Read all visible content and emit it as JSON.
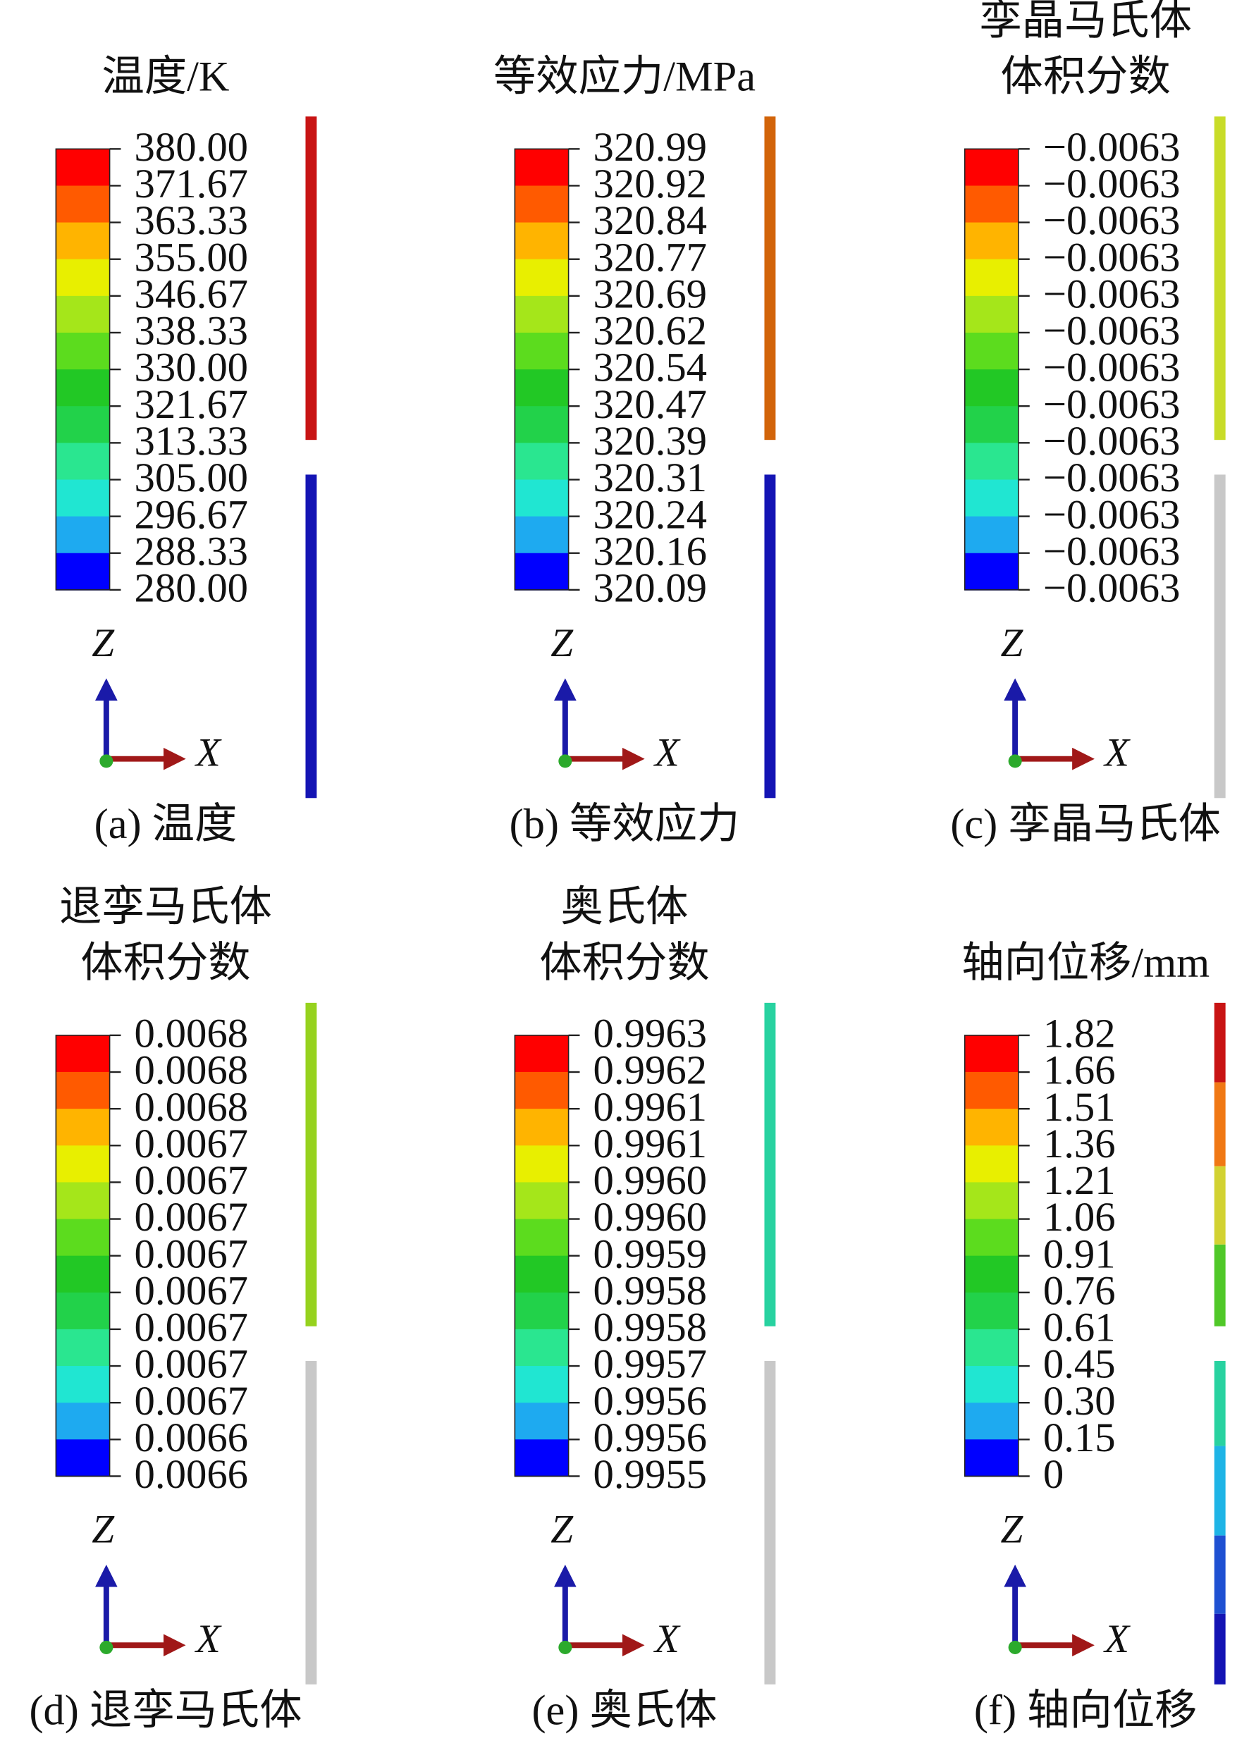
{
  "panels": [
    {
      "title": [
        "温度/K"
      ],
      "labels": [
        "380.00",
        "371.67",
        "363.33",
        "355.00",
        "346.67",
        "338.33",
        "330.00",
        "321.67",
        "313.33",
        "305.00",
        "296.67",
        "288.33",
        "280.00"
      ],
      "axis_z": "Z",
      "axis_x": "X",
      "caption": "(a) 温度"
    },
    {
      "title": [
        "等效应力/MPa"
      ],
      "labels": [
        "320.99",
        "320.92",
        "320.84",
        "320.77",
        "320.69",
        "320.62",
        "320.54",
        "320.47",
        "320.39",
        "320.31",
        "320.24",
        "320.16",
        "320.09"
      ],
      "axis_z": "Z",
      "axis_x": "X",
      "caption": "(b) 等效应力"
    },
    {
      "title": [
        "孪晶马氏体",
        "体积分数"
      ],
      "labels": [
        "−0.0063",
        "−0.0063",
        "−0.0063",
        "−0.0063",
        "−0.0063",
        "−0.0063",
        "−0.0063",
        "−0.0063",
        "−0.0063",
        "−0.0063",
        "−0.0063",
        "−0.0063",
        "−0.0063"
      ],
      "axis_z": "Z",
      "axis_x": "X",
      "caption": "(c) 孪晶马氏体"
    },
    {
      "title": [
        "退孪马氏体",
        "体积分数"
      ],
      "labels": [
        "0.0068",
        "0.0068",
        "0.0068",
        "0.0067",
        "0.0067",
        "0.0067",
        "0.0067",
        "0.0067",
        "0.0067",
        "0.0067",
        "0.0067",
        "0.0066",
        "0.0066"
      ],
      "axis_z": "Z",
      "axis_x": "X",
      "caption": "(d) 退孪马氏体"
    },
    {
      "title": [
        "奥氏体",
        "体积分数"
      ],
      "labels": [
        "0.9963",
        "0.9962",
        "0.9961",
        "0.9961",
        "0.9960",
        "0.9960",
        "0.9959",
        "0.9958",
        "0.9958",
        "0.9957",
        "0.9956",
        "0.9956",
        "0.9955"
      ],
      "axis_z": "Z",
      "axis_x": "X",
      "caption": "(e) 奥氏体"
    },
    {
      "title": [
        "轴向位移/mm"
      ],
      "labels": [
        "1.82",
        "1.66",
        "1.51",
        "1.36",
        "1.21",
        "1.06",
        "0.91",
        "0.76",
        "0.61",
        "0.45",
        "0.30",
        "0.15",
        "0"
      ],
      "axis_z": "Z",
      "axis_x": "X",
      "caption": "(f) 轴向位移"
    }
  ]
}
